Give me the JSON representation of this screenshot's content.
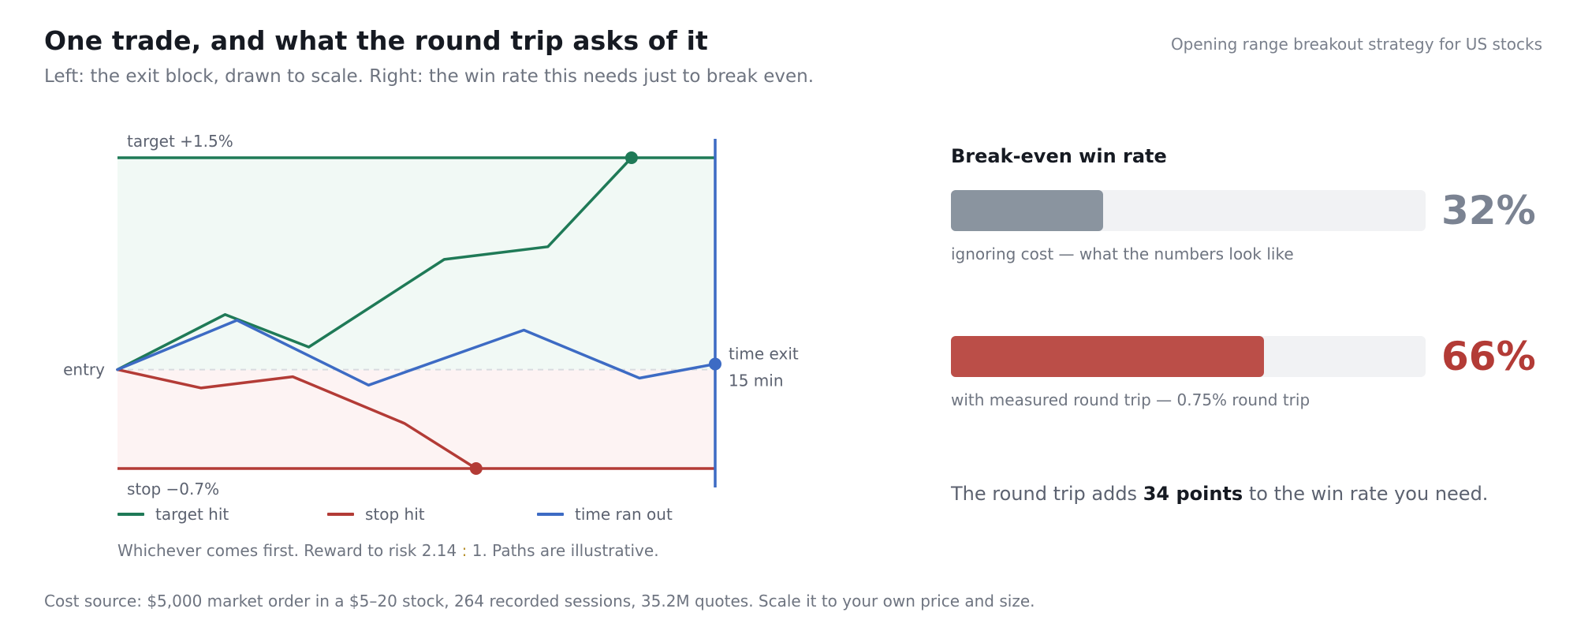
{
  "header": {
    "title": "One trade, and what the round trip asks of it",
    "subtitle": "Left: the exit block, drawn to scale. Right: the win rate this needs just to break even.",
    "context": "Opening range breakout strategy for US stocks"
  },
  "chart_data": [
    {
      "type": "line",
      "title": "",
      "xlabel": "",
      "ylabel": "",
      "x_unit": "minutes since entry",
      "x_range": [
        0,
        15
      ],
      "y_unit": "% move from entry",
      "y_range": [
        -0.7,
        1.5
      ],
      "levels": {
        "target": {
          "label": "target +1.5%",
          "value": 1.5
        },
        "stop": {
          "label": "stop −0.7%",
          "value": -0.7
        },
        "entry": {
          "label": "entry",
          "value": 0
        },
        "time_exit": {
          "label_line1": "time exit",
          "label_line2": "15 min",
          "value": 15
        }
      },
      "series": [
        {
          "name": "target hit",
          "color": "#1f7a57",
          "points": [
            [
              0,
              0
            ],
            [
              2.7,
              0.39
            ],
            [
              4.8,
              0.16
            ],
            [
              8.2,
              0.78
            ],
            [
              10.8,
              0.87
            ],
            [
              12.9,
              1.5
            ]
          ],
          "end_marker": true
        },
        {
          "name": "stop hit",
          "color": "#b33b36",
          "points": [
            [
              0,
              0
            ],
            [
              2.1,
              -0.13
            ],
            [
              4.4,
              -0.05
            ],
            [
              7.2,
              -0.38
            ],
            [
              9.0,
              -0.7
            ]
          ],
          "end_marker": true
        },
        {
          "name": "time ran out",
          "color": "#3d6bc4",
          "points": [
            [
              0,
              0
            ],
            [
              3.0,
              0.35
            ],
            [
              6.3,
              -0.11
            ],
            [
              10.2,
              0.28
            ],
            [
              13.1,
              -0.06
            ],
            [
              15,
              0.04
            ]
          ],
          "end_marker": true
        }
      ],
      "note": {
        "part1": "Whichever comes first. Reward to risk 2.14",
        "sep": ":",
        "part2": "1. Paths are illustrative."
      }
    },
    {
      "type": "bar",
      "title": "Break-even win rate",
      "categories": [
        "ignoring cost — what the numbers look like",
        "with measured round trip — 0.75% round trip"
      ],
      "values": [
        32,
        66
      ],
      "value_labels": [
        "32%",
        "66%"
      ],
      "colors": [
        "#8a949f",
        "#bb4e48"
      ],
      "label_colors": [
        "#7b8392",
        "#b33b36"
      ],
      "xlim": [
        0,
        100
      ]
    }
  ],
  "summary": {
    "prefix": "The round trip adds",
    "emphasis": "34 points",
    "suffix": "to the win rate you need."
  },
  "footer": "Cost source: $5,000 market order in a $5–20 stock, 264 recorded sessions, 35.2M quotes. Scale it to your own price and size."
}
